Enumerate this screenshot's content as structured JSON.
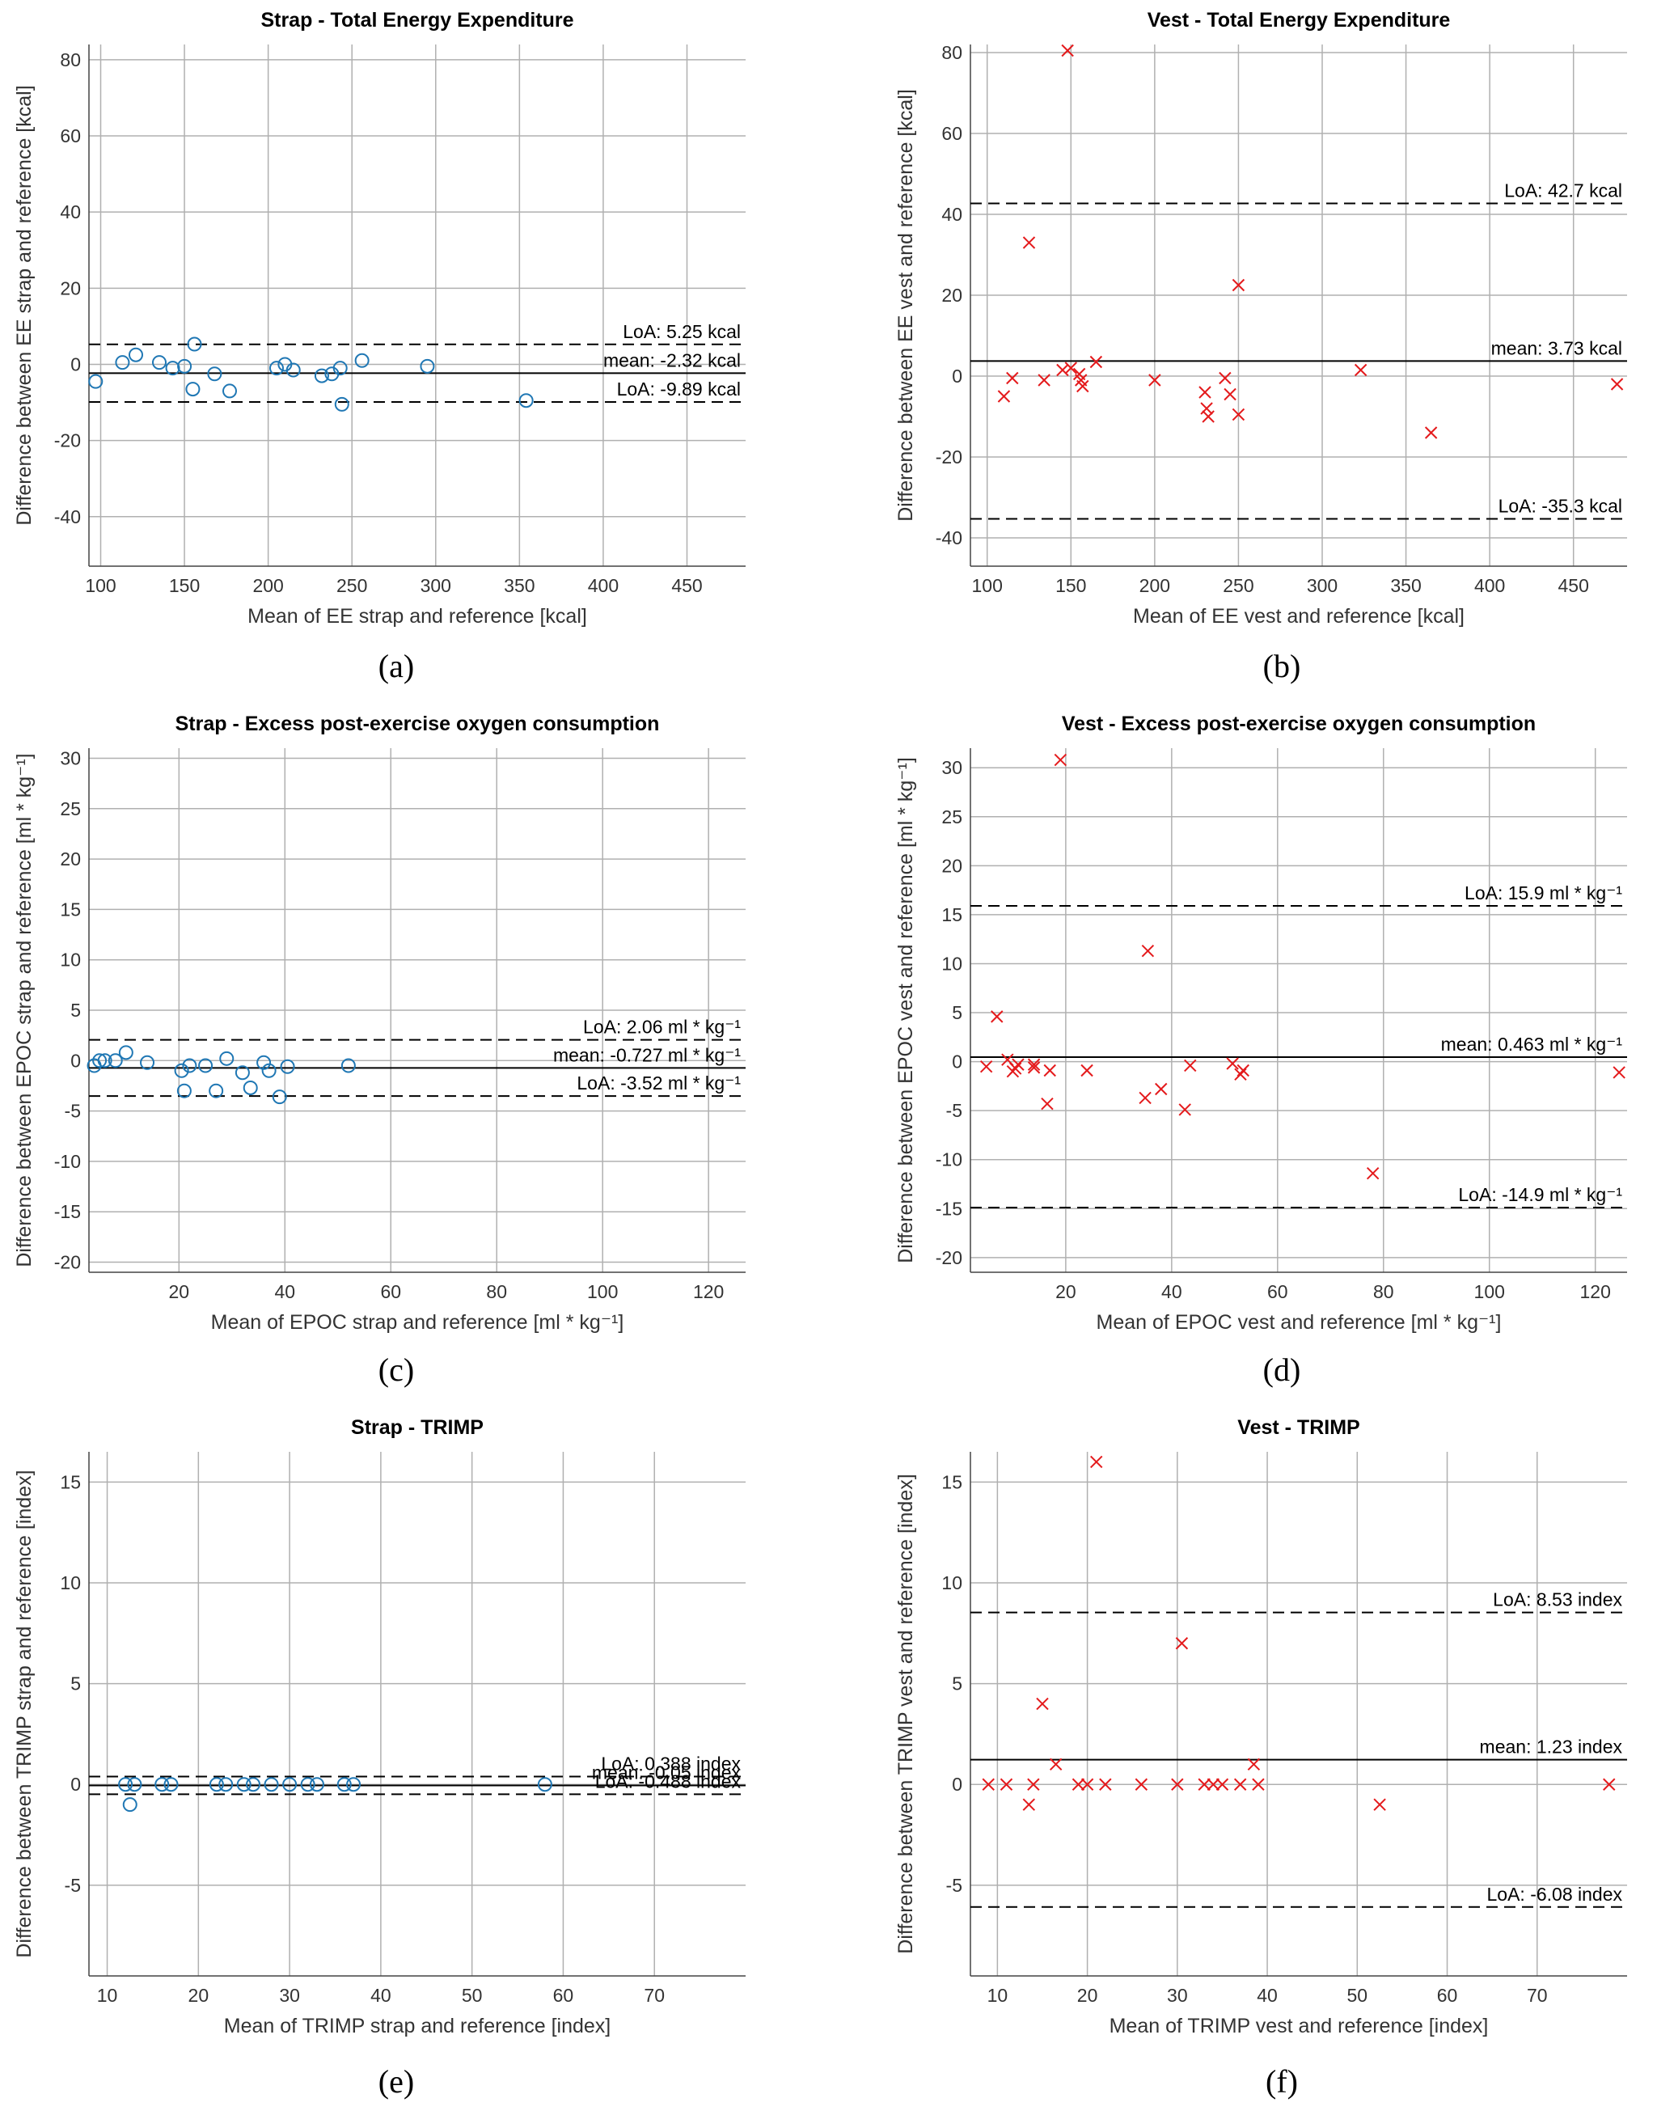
{
  "colors": {
    "strap": "#1f77b4",
    "vest": "#e41a1c",
    "axis": "#000000",
    "grid": "#b0b0b0"
  },
  "subfigure_labels": [
    "(a)",
    "(b)",
    "(c)",
    "(d)",
    "(e)",
    "(f)"
  ],
  "chart_data": [
    {
      "id": "a",
      "type": "scatter",
      "marker": "circle",
      "color": "#1f77b4",
      "title": "Strap - Total Energy Expenditure",
      "xlabel": "Mean of EE strap and reference [kcal]",
      "ylabel": "Difference between EE strap and reference [kcal]",
      "xlim": [
        93,
        485
      ],
      "ylim": [
        -53,
        84
      ],
      "xticks": [
        100,
        150,
        200,
        250,
        300,
        350,
        400,
        450
      ],
      "yticks": [
        -40,
        -20,
        0,
        20,
        40,
        60,
        80
      ],
      "x": [
        97,
        113,
        121,
        135,
        143,
        150,
        155,
        156,
        168,
        177,
        205,
        210,
        215,
        232,
        238,
        243,
        244,
        256,
        295,
        354
      ],
      "y": [
        -4.5,
        0.5,
        2.5,
        0.5,
        -1,
        -0.5,
        -6.5,
        5.3,
        -2.5,
        -7,
        -1,
        0,
        -1.5,
        -3,
        -2.5,
        -1,
        -10.5,
        1,
        -0.5,
        -9.5
      ],
      "lines": [
        {
          "y": 5.25,
          "style": "dashed",
          "label": "LoA: 5.25 kcal"
        },
        {
          "y": -2.32,
          "style": "solid",
          "label": "mean: -2.32 kcal"
        },
        {
          "y": -9.89,
          "style": "dashed",
          "label": "LoA: -9.89 kcal"
        }
      ]
    },
    {
      "id": "b",
      "type": "scatter",
      "marker": "x",
      "color": "#e41a1c",
      "title": "Vest - Total Energy Expenditure",
      "xlabel": "Mean of EE vest and reference [kcal]",
      "ylabel": "Difference between EE vest and reference [kcal]",
      "xlim": [
        90,
        482
      ],
      "ylim": [
        -47,
        82
      ],
      "xticks": [
        100,
        150,
        200,
        250,
        300,
        350,
        400,
        450
      ],
      "yticks": [
        -40,
        -20,
        0,
        20,
        40,
        60,
        80
      ],
      "x": [
        110,
        115,
        125,
        134,
        145,
        148,
        150,
        155,
        156,
        157,
        165,
        200,
        230,
        231,
        232,
        242,
        245,
        250,
        250,
        323,
        365,
        476
      ],
      "y": [
        -5,
        -0.5,
        33,
        -1,
        1.5,
        80.5,
        2,
        0.5,
        -1,
        -2.5,
        3.5,
        -1,
        -4,
        -8,
        -10,
        -0.5,
        -4.5,
        22.5,
        -9.5,
        1.5,
        -14,
        -2
      ],
      "lines": [
        {
          "y": 42.7,
          "style": "dashed",
          "label": "LoA: 42.7 kcal"
        },
        {
          "y": 3.73,
          "style": "solid",
          "label": "mean: 3.73 kcal"
        },
        {
          "y": -35.3,
          "style": "dashed",
          "label": "LoA: -35.3 kcal"
        }
      ]
    },
    {
      "id": "c",
      "type": "scatter",
      "marker": "circle",
      "color": "#1f77b4",
      "title": "Strap - Excess post-exercise oxygen consumption",
      "xlabel": "Mean of EPOC strap and reference [ml * kg⁻¹]",
      "ylabel": "Difference between EPOC strap and reference [ml * kg⁻¹]",
      "xlim": [
        3,
        127
      ],
      "ylim": [
        -21,
        31
      ],
      "xticks": [
        20,
        40,
        60,
        80,
        100,
        120
      ],
      "yticks": [
        -20,
        -15,
        -10,
        -5,
        0,
        5,
        10,
        15,
        20,
        25,
        30
      ],
      "x": [
        4,
        5,
        6,
        8,
        10,
        14,
        20.5,
        21,
        22,
        25,
        27,
        29,
        32,
        33.5,
        36,
        37,
        39,
        40.5,
        52
      ],
      "y": [
        -0.5,
        0,
        0,
        0,
        0.8,
        -0.2,
        -1,
        -3,
        -0.5,
        -0.5,
        -3,
        0.2,
        -1.2,
        -2.7,
        -0.2,
        -1,
        -3.6,
        -0.6,
        -0.5
      ],
      "lines": [
        {
          "y": 2.06,
          "style": "dashed",
          "label": "LoA: 2.06 ml * kg⁻¹"
        },
        {
          "y": -0.727,
          "style": "solid",
          "label": "mean: -0.727 ml * kg⁻¹"
        },
        {
          "y": -3.52,
          "style": "dashed",
          "label": "LoA: -3.52 ml * kg⁻¹"
        }
      ]
    },
    {
      "id": "d",
      "type": "scatter",
      "marker": "x",
      "color": "#e41a1c",
      "title": "Vest - Excess post-exercise oxygen consumption",
      "xlabel": "Mean of EPOC vest and reference [ml * kg⁻¹]",
      "ylabel": "Difference between EPOC vest and reference [ml * kg⁻¹]",
      "xlim": [
        2,
        126
      ],
      "ylim": [
        -21.5,
        32
      ],
      "xticks": [
        20,
        40,
        60,
        80,
        100,
        120
      ],
      "yticks": [
        -20,
        -15,
        -10,
        -5,
        0,
        5,
        10,
        15,
        20,
        25,
        30
      ],
      "x": [
        5,
        7,
        9,
        10,
        10.5,
        11,
        14,
        14,
        16.5,
        17,
        19,
        24,
        35,
        35.5,
        38,
        42.5,
        43.5,
        51.5,
        53,
        53.5,
        78,
        124.5
      ],
      "y": [
        -0.5,
        4.6,
        0.2,
        -1,
        -0.7,
        -0.3,
        -0.3,
        -0.6,
        -4.3,
        -0.9,
        30.8,
        -0.9,
        -3.7,
        11.3,
        -2.8,
        -4.9,
        -0.4,
        -0.2,
        -1.3,
        -0.9,
        -11.4,
        -1.1
      ],
      "lines": [
        {
          "y": 15.9,
          "style": "dashed",
          "label": "LoA: 15.9 ml * kg⁻¹"
        },
        {
          "y": 0.463,
          "style": "solid",
          "label": "mean: 0.463 ml * kg⁻¹"
        },
        {
          "y": -14.9,
          "style": "dashed",
          "label": "LoA: -14.9 ml * kg⁻¹"
        }
      ]
    },
    {
      "id": "e",
      "type": "scatter",
      "marker": "circle",
      "color": "#1f77b4",
      "title": "Strap - TRIMP",
      "xlabel": "Mean of TRIMP strap and reference [index]",
      "ylabel": "Difference between TRIMP strap and reference [index]",
      "xlim": [
        8,
        80
      ],
      "ylim": [
        -9.5,
        16.5
      ],
      "xticks": [
        10,
        20,
        30,
        40,
        50,
        60,
        70
      ],
      "yticks": [
        -5,
        0,
        5,
        10,
        15
      ],
      "x": [
        12,
        12.5,
        13,
        16,
        17,
        22,
        23,
        25,
        26,
        28,
        30,
        32,
        33,
        36,
        37,
        58
      ],
      "y": [
        0,
        -1,
        0,
        0,
        0,
        0,
        0,
        0,
        0,
        0,
        0,
        0,
        0,
        0,
        0,
        0
      ],
      "lines": [
        {
          "y": 0.388,
          "style": "dashed",
          "label": "LoA: 0.388 index"
        },
        {
          "y": -0.05,
          "style": "solid",
          "label": "mean: -0.05 index"
        },
        {
          "y": -0.488,
          "style": "dashed",
          "label": "LoA: -0.488 index"
        }
      ]
    },
    {
      "id": "f",
      "type": "scatter",
      "marker": "x",
      "color": "#e41a1c",
      "title": "Vest - TRIMP",
      "xlabel": "Mean of TRIMP vest and reference [index]",
      "ylabel": "Difference between TRIMP vest and reference [index]",
      "xlim": [
        7,
        80
      ],
      "ylim": [
        -9.5,
        16.5
      ],
      "xticks": [
        10,
        20,
        30,
        40,
        50,
        60,
        70
      ],
      "yticks": [
        -5,
        0,
        5,
        10,
        15
      ],
      "x": [
        9,
        11,
        13.5,
        14,
        15,
        16.5,
        19,
        20,
        21,
        22,
        26,
        30,
        30.5,
        33,
        34,
        35,
        37,
        38.5,
        39,
        52.5,
        78
      ],
      "y": [
        0,
        0,
        -1,
        0,
        4,
        1,
        0,
        0,
        16,
        0,
        0,
        0,
        7,
        0,
        0,
        0,
        0,
        1,
        0,
        -1,
        0
      ],
      "lines": [
        {
          "y": 8.53,
          "style": "dashed",
          "label": "LoA: 8.53 index"
        },
        {
          "y": 1.23,
          "style": "solid",
          "label": "mean: 1.23 index"
        },
        {
          "y": -6.08,
          "style": "dashed",
          "label": "LoA: -6.08 index"
        }
      ]
    }
  ]
}
